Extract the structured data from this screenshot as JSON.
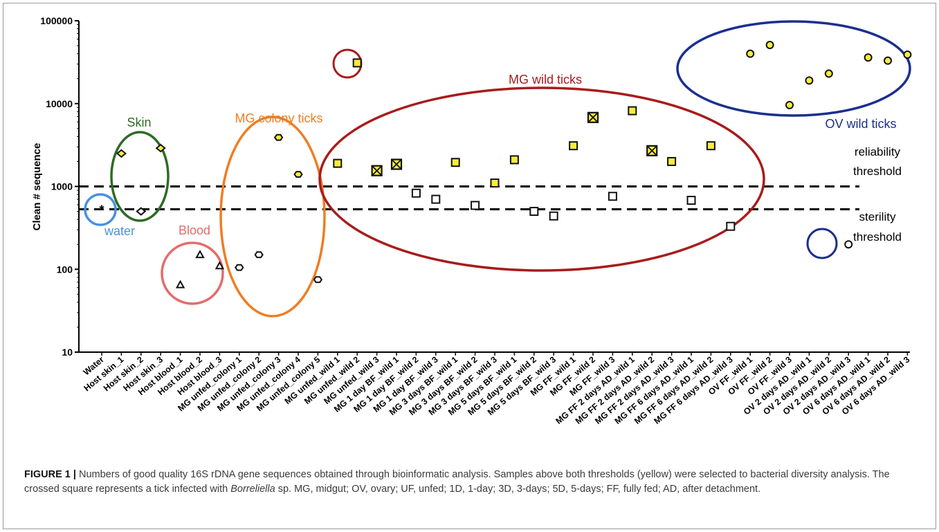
{
  "chart_data": {
    "type": "scatter",
    "ylabel": "Clean # sequence",
    "yscale": "log",
    "ylim": [
      10,
      100000
    ],
    "yticks": [
      "10",
      "100",
      "1000",
      "10000",
      "100000"
    ],
    "categories": [
      "Water",
      "Host skin_1",
      "Host skin_2",
      "Host skin_3",
      "Host blood_1",
      "Host blood_2",
      "Host blood_3",
      "MG unfed_colony 1",
      "MG unfed_colony 2",
      "MG unfed_colony 3",
      "MG unfed_colony 4",
      "MG unfed_colony 5",
      "MG unfed_wild 1",
      "MG unfed_wild 2",
      "MG unfed_wild 3",
      "MG 1 day BF_wild 1",
      "MG 1 day BF_wild 2",
      "MG 1 day BF_wild 3",
      "MG 3 days BF_wild 1",
      "MG 3 days BF_wild 2",
      "MG 3 days BF_wild 3",
      "MG 5 days BF_wild 1",
      "MG 5 days BF_wild 2",
      "MG 5 days BF_wild 3",
      "MG FF_wild 1",
      "MG FF_wild 2",
      "MG FF_wild 3",
      "MG FF 2 days AD_wild 1",
      "MG FF 2 days AD_wild 2",
      "MG FF 2 days AD_wild 3",
      "MG FF 6 days AD_wild 1",
      "MG FF 6 days AD_wild 2",
      "MG FF 6 days AD_wild 3",
      "OV FF_wild 1",
      "OV FF_wild 2",
      "OV FF_wild 3",
      "OV 2 days AD_wild 1",
      "OV 2 days AD_wild 2",
      "OV 2 days AD_wild 3",
      "OV 6 days AD_wild 1",
      "OV 6 days AD_wild 2",
      "OV 6 days AD_wild 3"
    ],
    "points": [
      {
        "cat": 0,
        "value": 530,
        "marker": "star",
        "selected": false
      },
      {
        "cat": 1,
        "value": 2500,
        "marker": "diamond",
        "selected": true
      },
      {
        "cat": 2,
        "value": 500,
        "marker": "diamond",
        "selected": false
      },
      {
        "cat": 3,
        "value": 2900,
        "marker": "diamond",
        "selected": true
      },
      {
        "cat": 4,
        "value": 65,
        "marker": "triangle",
        "selected": false
      },
      {
        "cat": 5,
        "value": 150,
        "marker": "triangle",
        "selected": false
      },
      {
        "cat": 6,
        "value": 110,
        "marker": "triangle",
        "selected": false
      },
      {
        "cat": 7,
        "value": 105,
        "marker": "hexagon",
        "selected": false
      },
      {
        "cat": 8,
        "value": 150,
        "marker": "hexagon",
        "selected": false
      },
      {
        "cat": 9,
        "value": 3900,
        "marker": "hexagon",
        "selected": true
      },
      {
        "cat": 10,
        "value": 1400,
        "marker": "hexagon",
        "selected": true
      },
      {
        "cat": 11,
        "value": 75,
        "marker": "hexagon",
        "selected": false
      },
      {
        "cat": 12,
        "value": 1900,
        "marker": "square",
        "selected": true
      },
      {
        "cat": 13,
        "value": 31000,
        "marker": "square",
        "selected": true
      },
      {
        "cat": 14,
        "value": 1550,
        "marker": "crossed-square",
        "selected": true
      },
      {
        "cat": 15,
        "value": 1850,
        "marker": "crossed-square",
        "selected": true
      },
      {
        "cat": 16,
        "value": 830,
        "marker": "square",
        "selected": false
      },
      {
        "cat": 17,
        "value": 700,
        "marker": "square",
        "selected": false
      },
      {
        "cat": 18,
        "value": 1950,
        "marker": "square",
        "selected": true
      },
      {
        "cat": 19,
        "value": 590,
        "marker": "square",
        "selected": false
      },
      {
        "cat": 20,
        "value": 1100,
        "marker": "square",
        "selected": true
      },
      {
        "cat": 21,
        "value": 2100,
        "marker": "square",
        "selected": true
      },
      {
        "cat": 22,
        "value": 500,
        "marker": "square",
        "selected": false
      },
      {
        "cat": 23,
        "value": 440,
        "marker": "square",
        "selected": false
      },
      {
        "cat": 24,
        "value": 3100,
        "marker": "square",
        "selected": true
      },
      {
        "cat": 25,
        "value": 6800,
        "marker": "crossed-square",
        "selected": true
      },
      {
        "cat": 26,
        "value": 760,
        "marker": "square",
        "selected": false
      },
      {
        "cat": 27,
        "value": 8200,
        "marker": "square",
        "selected": true
      },
      {
        "cat": 28,
        "value": 2700,
        "marker": "crossed-square",
        "selected": true
      },
      {
        "cat": 29,
        "value": 2000,
        "marker": "square",
        "selected": true
      },
      {
        "cat": 30,
        "value": 680,
        "marker": "square",
        "selected": false
      },
      {
        "cat": 31,
        "value": 3100,
        "marker": "square",
        "selected": true
      },
      {
        "cat": 32,
        "value": 330,
        "marker": "square",
        "selected": false
      },
      {
        "cat": 33,
        "value": 40000,
        "marker": "circle",
        "selected": true
      },
      {
        "cat": 34,
        "value": 51000,
        "marker": "circle",
        "selected": true
      },
      {
        "cat": 35,
        "value": 9600,
        "marker": "circle",
        "selected": true
      },
      {
        "cat": 36,
        "value": 19000,
        "marker": "circle",
        "selected": true
      },
      {
        "cat": 37,
        "value": 23000,
        "marker": "circle",
        "selected": true
      },
      {
        "cat": 38,
        "value": 200,
        "marker": "circle",
        "selected": false
      },
      {
        "cat": 39,
        "value": 36000,
        "marker": "circle",
        "selected": true
      },
      {
        "cat": 40,
        "value": 33000,
        "marker": "circle",
        "selected": true
      },
      {
        "cat": 41,
        "value": 39000,
        "marker": "circle",
        "selected": true
      }
    ],
    "thresholds": [
      {
        "value": 1000,
        "label_lines": [
          "reliability",
          "threshold"
        ]
      },
      {
        "value": 530,
        "label_lines": [
          "sterility",
          "threshold"
        ]
      }
    ],
    "groups": [
      {
        "label": "Skin",
        "color": "#2e6b24"
      },
      {
        "label": "water",
        "color": "#4a90e2"
      },
      {
        "label": "Blood",
        "color": "#e46b6b"
      },
      {
        "label": "MG colony ticks",
        "color": "#ef7d22"
      },
      {
        "label": "MG wild ticks",
        "color": "#a71c1c"
      },
      {
        "label": "OV wild ticks",
        "color": "#1b2f8f"
      }
    ],
    "colors": {
      "selected_fill": "#f7ec3c",
      "unselected_fill": "#ffffff",
      "marker_stroke": "#111111"
    }
  },
  "caption": {
    "label": "FIGURE 1 |",
    "text_1": " Numbers of good quality 16S rDNA gene sequences obtained through bioinformatic analysis. Samples above both thresholds (yellow) were selected to bacterial diversity analysis. The crossed square represents a tick infected with ",
    "italic": "Borreliella",
    "text_2": " sp. MG, midgut; OV, ovary; UF, unfed; 1D, 1-day; 3D, 3-days; 5D, 5-days; FF, fully fed; AD, after detachment."
  }
}
